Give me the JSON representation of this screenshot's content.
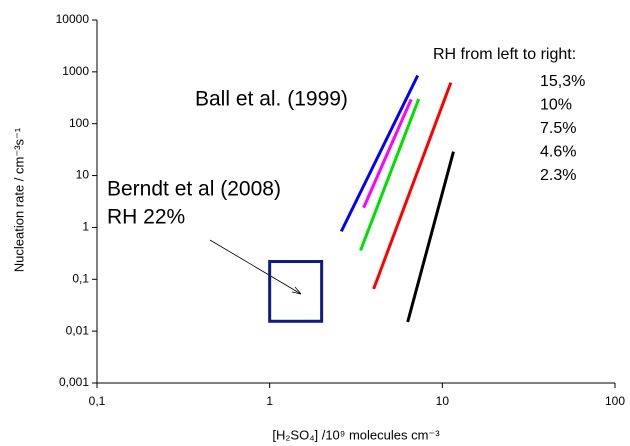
{
  "chart_data": {
    "type": "line",
    "x_label": "[H₂SO₄] /10⁹ molecules cm⁻³",
    "y_label": "Nucleation rate / cm⁻³s⁻¹",
    "xscale": "log",
    "yscale": "log",
    "grid": false,
    "xlim": [
      0.1,
      100
    ],
    "xticks": [
      {
        "value": 0.1,
        "label": "0,1"
      },
      1,
      10,
      100
    ],
    "ylim": [
      0.001,
      10000
    ],
    "yticks": [
      {
        "value": 0.001,
        "label": "0,001"
      },
      {
        "value": 0.01,
        "label": "0,01"
      },
      {
        "value": 0.1,
        "label": "0,1"
      },
      1,
      10,
      100,
      1000,
      10000
    ],
    "legend_title": "RH from left to right:",
    "series": [
      {
        "name": "15,3%",
        "color": "#0000ff",
        "x": [
          2.6,
          7.2
        ],
        "values": [
          0.84,
          850
        ]
      },
      {
        "name": "10%",
        "color": "#ff00ff",
        "x": [
          3.5,
          6.6
        ],
        "values": [
          2.4,
          295
        ]
      },
      {
        "name": "7.5%",
        "color": "#00e000",
        "x": [
          3.36,
          7.3
        ],
        "values": [
          0.36,
          300
        ]
      },
      {
        "name": "4.6%",
        "color": "#ff0000",
        "x": [
          4.0,
          11.2
        ],
        "values": [
          0.065,
          620
        ]
      },
      {
        "name": "2.3%",
        "color": "#000000",
        "x": [
          6.3,
          11.6
        ],
        "values": [
          0.015,
          29
        ]
      }
    ],
    "box": {
      "x": [
        1,
        2
      ],
      "y": [
        0.0155,
        0.22
      ],
      "color": "#101a80"
    },
    "annotations": [
      "Ball et al. (1999)",
      "Berndt et al (2008)",
      "RH 22%"
    ]
  }
}
